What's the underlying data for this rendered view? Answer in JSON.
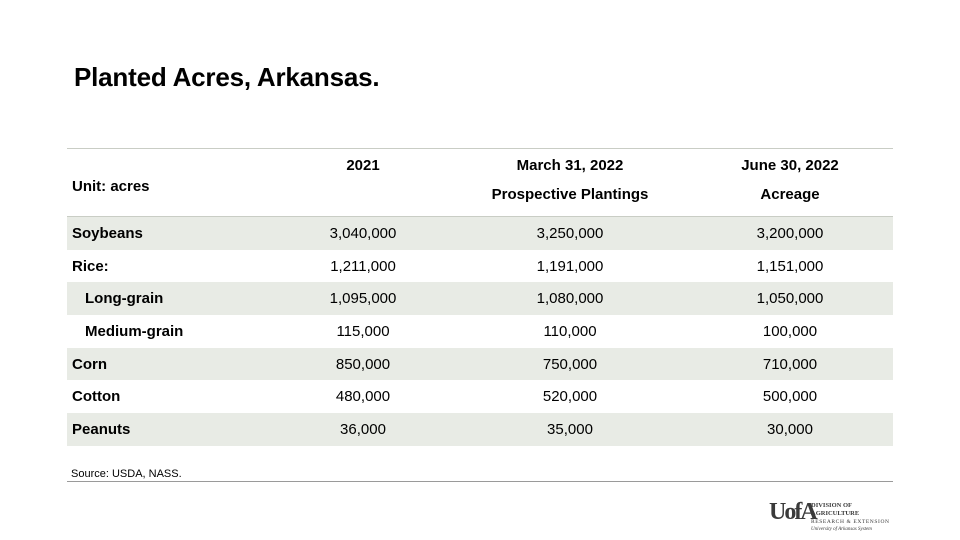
{
  "title": "Planted Acres, Arkansas.",
  "table": {
    "unit_label": "Unit: acres",
    "columns": [
      {
        "line1": "2021",
        "line2": ""
      },
      {
        "line1": "March 31, 2022",
        "line2": "Prospective Plantings"
      },
      {
        "line1": "June 30, 2022",
        "line2": "Acreage"
      }
    ],
    "rows": [
      {
        "label": "Soybeans",
        "indent": 0,
        "values": [
          "3,040,000",
          "3,250,000",
          "3,200,000"
        ]
      },
      {
        "label": "Rice:",
        "indent": 0,
        "values": [
          "1,211,000",
          "1,191,000",
          "1,151,000"
        ]
      },
      {
        "label": "Long-grain",
        "indent": 1,
        "values": [
          "1,095,000",
          "1,080,000",
          "1,050,000"
        ]
      },
      {
        "label": "Medium-grain",
        "indent": 1,
        "values": [
          "115,000",
          "110,000",
          "100,000"
        ]
      },
      {
        "label": "Corn",
        "indent": 0,
        "values": [
          "850,000",
          "750,000",
          "710,000"
        ]
      },
      {
        "label": "Cotton",
        "indent": 0,
        "values": [
          "480,000",
          "520,000",
          "500,000"
        ]
      },
      {
        "label": "Peanuts",
        "indent": 0,
        "values": [
          "36,000",
          "35,000",
          "30,000"
        ]
      }
    ]
  },
  "source": "Source:  USDA, NASS.",
  "logo": {
    "mark": "UofA",
    "line1": "DIVISION OF AGRICULTURE",
    "line2": "RESEARCH & EXTENSION",
    "line3": "University of Arkansas System"
  },
  "colors": {
    "row_shade": "#e8ebe5",
    "rule": "#c9cdc5"
  }
}
